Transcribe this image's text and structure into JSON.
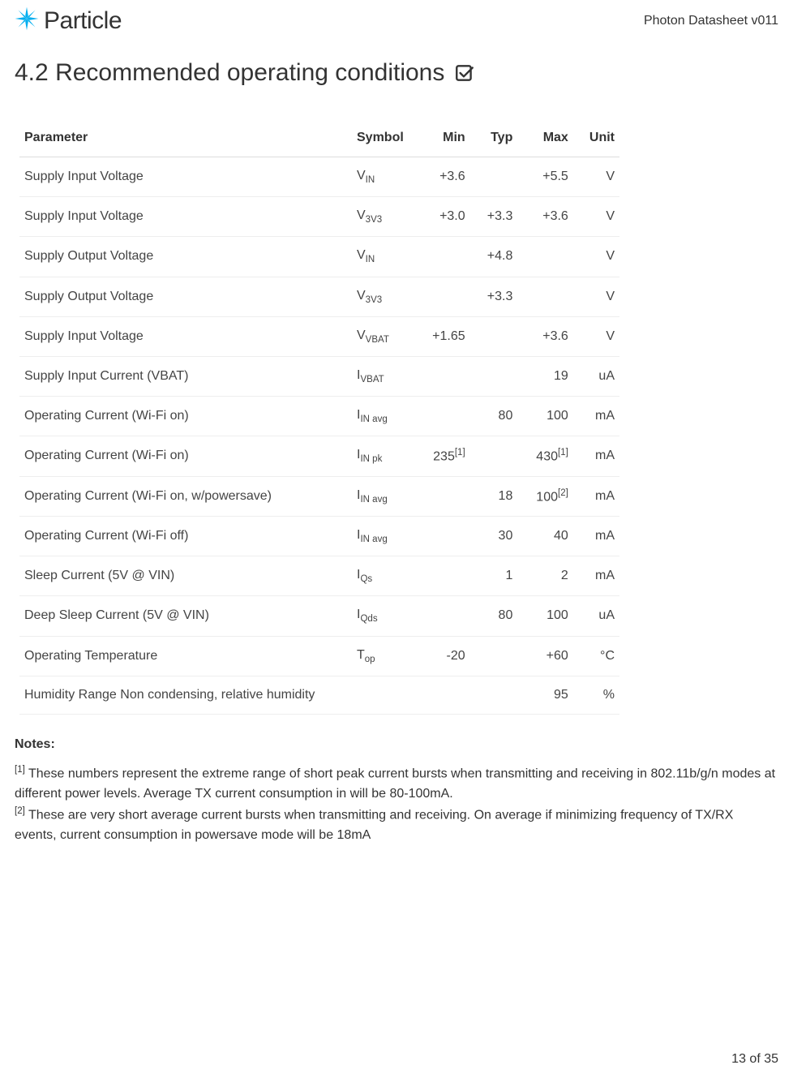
{
  "header": {
    "brand": "Particle",
    "doc_title": "Photon Datasheet v011",
    "logo_color": "#00aeef"
  },
  "section": {
    "number": "4.2",
    "title": "Recommended operating conditions"
  },
  "table": {
    "headers": [
      "Parameter",
      "Symbol",
      "Min",
      "Typ",
      "Max",
      "Unit"
    ],
    "column_align": [
      "left",
      "left",
      "right",
      "right",
      "right",
      "right"
    ],
    "border_color": "#eeeeee",
    "header_border_color": "#dddddd",
    "rows": [
      {
        "parameter": "Supply Input Voltage",
        "symbol_base": "V",
        "symbol_sub": "IN",
        "min": "+3.6",
        "typ": "",
        "max": "+5.5",
        "unit": "V"
      },
      {
        "parameter": "Supply Input Voltage",
        "symbol_base": "V",
        "symbol_sub": "3V3",
        "min": "+3.0",
        "typ": "+3.3",
        "max": "+3.6",
        "unit": "V"
      },
      {
        "parameter": "Supply Output Voltage",
        "symbol_base": "V",
        "symbol_sub": "IN",
        "min": "",
        "typ": "+4.8",
        "max": "",
        "unit": "V"
      },
      {
        "parameter": "Supply Output Voltage",
        "symbol_base": "V",
        "symbol_sub": "3V3",
        "min": "",
        "typ": "+3.3",
        "max": "",
        "unit": "V"
      },
      {
        "parameter": "Supply Input Voltage",
        "symbol_base": "V",
        "symbol_sub": "VBAT",
        "min": "+1.65",
        "typ": "",
        "max": "+3.6",
        "unit": "V"
      },
      {
        "parameter": "Supply Input Current (VBAT)",
        "symbol_base": "I",
        "symbol_sub": "VBAT",
        "min": "",
        "typ": "",
        "max": "19",
        "unit": "uA"
      },
      {
        "parameter": "Operating Current (Wi-Fi on)",
        "symbol_base": "I",
        "symbol_sub": "IN avg",
        "min": "",
        "typ": "80",
        "max": "100",
        "unit": "mA"
      },
      {
        "parameter": "Operating Current (Wi-Fi on)",
        "symbol_base": "I",
        "symbol_sub": "IN pk",
        "min": "235",
        "min_sup": "[1]",
        "typ": "",
        "max": "430",
        "max_sup": "[1]",
        "unit": "mA"
      },
      {
        "parameter": "Operating Current (Wi-Fi on, w/powersave)",
        "symbol_base": "I",
        "symbol_sub": "IN avg",
        "min": "",
        "typ": "18",
        "max": "100",
        "max_sup": "[2]",
        "unit": "mA"
      },
      {
        "parameter": "Operating Current (Wi-Fi off)",
        "symbol_base": "I",
        "symbol_sub": "IN avg",
        "min": "",
        "typ": "30",
        "max": "40",
        "unit": "mA"
      },
      {
        "parameter": "Sleep Current (5V @ VIN)",
        "symbol_base": "I",
        "symbol_sub": "Qs",
        "min": "",
        "typ": "1",
        "max": "2",
        "unit": "mA"
      },
      {
        "parameter": "Deep Sleep Current (5V @ VIN)",
        "symbol_base": "I",
        "symbol_sub": "Qds",
        "min": "",
        "typ": "80",
        "max": "100",
        "unit": "uA"
      },
      {
        "parameter": "Operating Temperature",
        "symbol_base": "T",
        "symbol_sub": "op",
        "min": "-20",
        "typ": "",
        "max": "+60",
        "unit": "°C"
      },
      {
        "parameter": "Humidity Range Non condensing, relative humidity",
        "symbol_base": "",
        "symbol_sub": "",
        "min": "",
        "typ": "",
        "max": "95",
        "unit": "%"
      }
    ]
  },
  "notes": {
    "heading": "Notes:",
    "items": [
      {
        "ref": "[1]",
        "text": "These numbers represent the extreme range of short peak current bursts when transmitting and receiving in 802.11b/g/n modes at different power levels. Average TX current consumption in will be 80-100mA."
      },
      {
        "ref": "[2]",
        "text": "These are very short average current bursts when transmitting and receiving. On average if minimizing frequency of TX/RX events, current consumption in powersave mode will be 18mA"
      }
    ]
  },
  "footer": {
    "page": "13 of 35"
  },
  "style": {
    "text_color": "#333333",
    "body_font_size_pt": 12,
    "title_font_size_pt": 22
  }
}
